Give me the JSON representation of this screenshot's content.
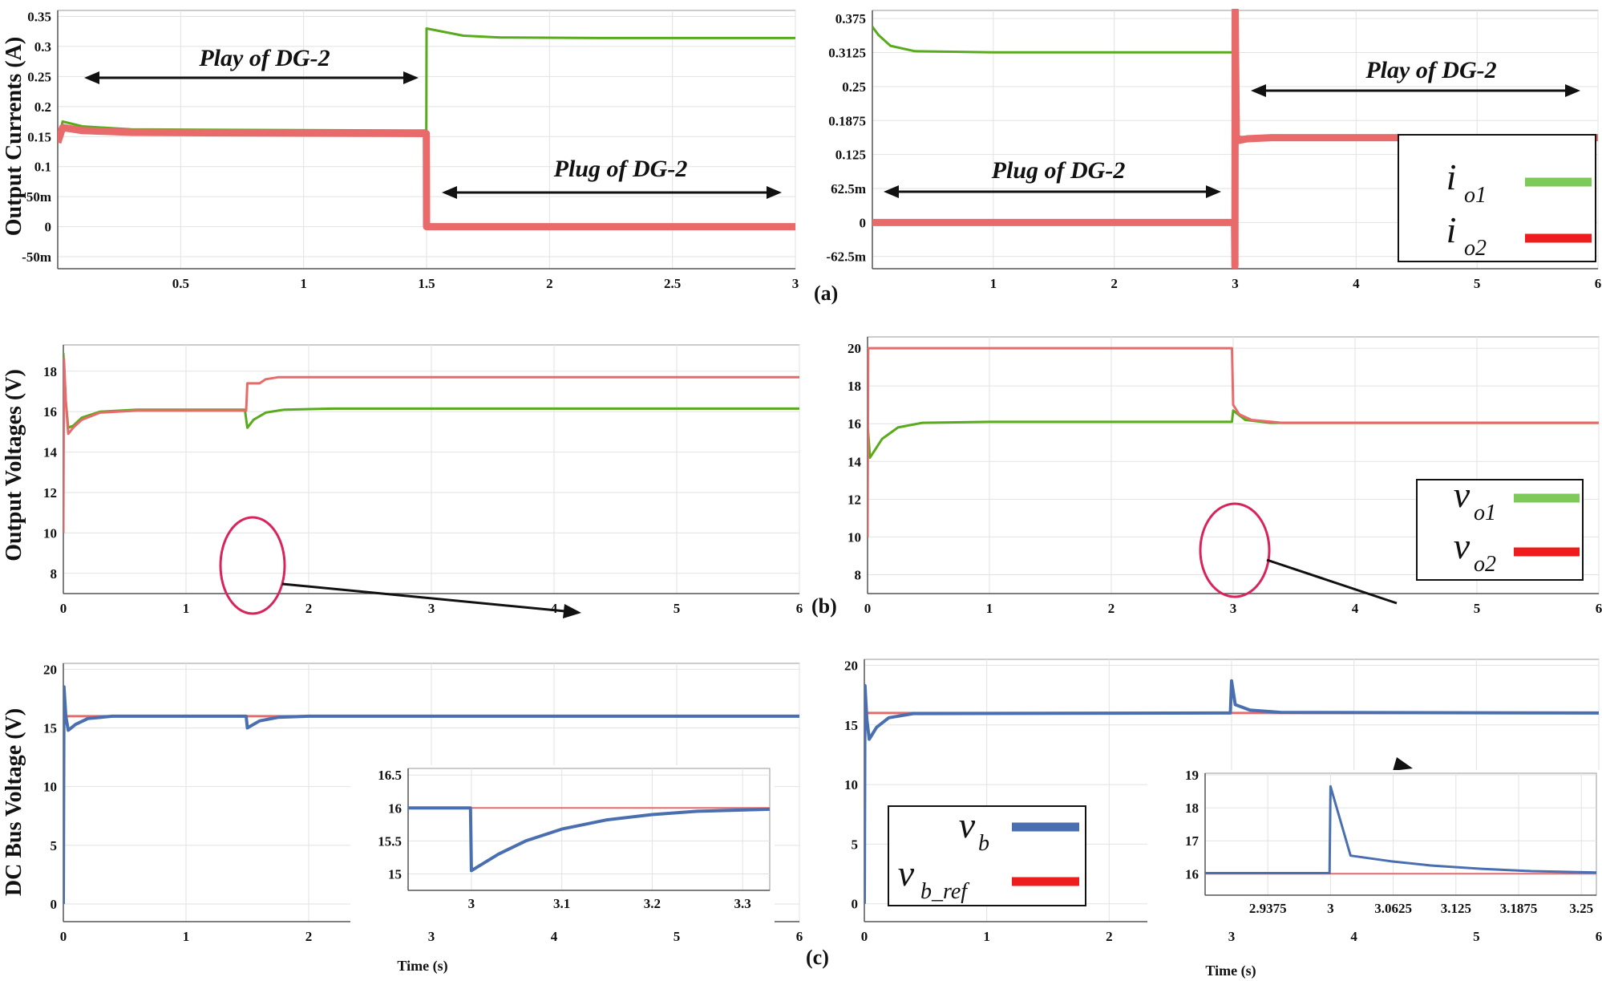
{
  "figure": {
    "ylabels": {
      "a": "Output Currents (A)",
      "b": "Output Voltages (V)",
      "c": "DC Bus Voltage (V)"
    },
    "panel_labels": {
      "a": "(a)",
      "b": "(b)",
      "c": "(c)"
    },
    "xlabel": "Time (s)"
  },
  "colors": {
    "green": "#5aaa1e",
    "red": "#e86a6a",
    "blue": "#4a6fb0",
    "ellipse": "#d8245a",
    "legend_green": "#7dc95a",
    "legend_red": "#ee1c1c"
  },
  "annotations": {
    "a_left_play": "Play of DG-2",
    "a_left_plug": "Plug of DG-2",
    "a_right_plug": "Plug of DG-2",
    "a_right_play": "Play of DG-2"
  },
  "legends": {
    "a": [
      {
        "sym": "i",
        "sub": "o1",
        "color": "green"
      },
      {
        "sym": "i",
        "sub": "o2",
        "color": "red"
      }
    ],
    "b": [
      {
        "sym": "v",
        "sub": "o1",
        "color": "green"
      },
      {
        "sym": "v",
        "sub": "o2",
        "color": "red"
      }
    ],
    "c": [
      {
        "sym": "v",
        "sub": "b",
        "color": "blue"
      },
      {
        "sym": "v",
        "sub": "b_ref",
        "color": "legend_red"
      }
    ]
  },
  "chart_data": [
    {
      "id": "a_left",
      "type": "line",
      "xlim": [
        0,
        3
      ],
      "ylim": [
        -0.07,
        0.36
      ],
      "xticks": [
        0.5,
        1,
        1.5,
        2,
        2.5,
        3
      ],
      "xtick_labels": [
        "0.5",
        "1",
        "1.5",
        "2",
        "2.5",
        "3"
      ],
      "yticks": [
        -0.05,
        0,
        0.05,
        0.1,
        0.15,
        0.2,
        0.25,
        0.3,
        0.35
      ],
      "ytick_labels": [
        "-50m",
        "0",
        "50m",
        "0.1",
        "0.15",
        "0.2",
        "0.25",
        "0.3",
        "0.35"
      ],
      "series": [
        {
          "name": "io1",
          "color": "green",
          "width": 3,
          "points": [
            [
              0,
              0.14
            ],
            [
              0.02,
              0.175
            ],
            [
              0.1,
              0.167
            ],
            [
              0.3,
              0.162
            ],
            [
              0.8,
              0.161
            ],
            [
              1.499,
              0.16
            ],
            [
              1.5,
              0.33
            ],
            [
              1.55,
              0.326
            ],
            [
              1.65,
              0.318
            ],
            [
              1.8,
              0.315
            ],
            [
              2.2,
              0.314
            ],
            [
              3,
              0.314
            ]
          ]
        },
        {
          "name": "io2",
          "color": "red",
          "width": 9,
          "points": [
            [
              0,
              0.14
            ],
            [
              0.02,
              0.165
            ],
            [
              0.1,
              0.16
            ],
            [
              0.3,
              0.157
            ],
            [
              0.8,
              0.156
            ],
            [
              1.499,
              0.155
            ],
            [
              1.5,
              0
            ],
            [
              3,
              0
            ]
          ]
        }
      ]
    },
    {
      "id": "a_right",
      "type": "line",
      "xlim": [
        0,
        6
      ],
      "ylim": [
        -0.085,
        0.39
      ],
      "xticks": [
        1,
        2,
        3,
        4,
        5,
        6
      ],
      "xtick_labels": [
        "1",
        "2",
        "3",
        "4",
        "5",
        "6"
      ],
      "yticks": [
        -0.0625,
        0,
        0.0625,
        0.125,
        0.1875,
        0.25,
        0.3125,
        0.375
      ],
      "ytick_labels": [
        "-62.5m",
        "0",
        "62.5m",
        "0.125",
        "0.1875",
        "0.25",
        "0.3125",
        "0.375"
      ],
      "series": [
        {
          "name": "io1",
          "color": "green",
          "width": 3,
          "points": [
            [
              0,
              0.36
            ],
            [
              0.05,
              0.345
            ],
            [
              0.15,
              0.325
            ],
            [
              0.35,
              0.315
            ],
            [
              1,
              0.313
            ],
            [
              2.99,
              0.313
            ],
            [
              3,
              0.16
            ],
            [
              3.05,
              0.157
            ],
            [
              3.2,
              0.159
            ],
            [
              6,
              0.16
            ]
          ]
        },
        {
          "name": "io2",
          "color": "red",
          "width": 9,
          "points": [
            [
              0,
              0
            ],
            [
              2.995,
              0
            ],
            [
              2.998,
              -0.08
            ],
            [
              3.0,
              0.39
            ],
            [
              3.01,
              0.15
            ],
            [
              3.1,
              0.154
            ],
            [
              3.3,
              0.156
            ],
            [
              6,
              0.156
            ]
          ]
        }
      ]
    },
    {
      "id": "b_left",
      "type": "line",
      "xlim": [
        0,
        6
      ],
      "ylim": [
        7,
        19.3
      ],
      "xticks": [
        0,
        1,
        2,
        3,
        4,
        5,
        6
      ],
      "xtick_labels": [
        "0",
        "1",
        "2",
        "3",
        "4",
        "5",
        "6"
      ],
      "yticks": [
        8,
        10,
        12,
        14,
        16,
        18
      ],
      "ytick_labels": [
        "8",
        "10",
        "12",
        "14",
        "16",
        "18"
      ],
      "series": [
        {
          "name": "vo1",
          "color": "green",
          "width": 3,
          "points": [
            [
              0,
              18.9
            ],
            [
              0.02,
              16.5
            ],
            [
              0.04,
              15.2
            ],
            [
              0.08,
              15.3
            ],
            [
              0.15,
              15.7
            ],
            [
              0.3,
              16.0
            ],
            [
              0.6,
              16.1
            ],
            [
              1.48,
              16.1
            ],
            [
              1.5,
              15.2
            ],
            [
              1.55,
              15.6
            ],
            [
              1.65,
              15.95
            ],
            [
              1.8,
              16.1
            ],
            [
              2.2,
              16.15
            ],
            [
              6,
              16.15
            ]
          ]
        },
        {
          "name": "vo2",
          "color": "red",
          "width": 3,
          "points": [
            [
              0,
              10
            ],
            [
              0.005,
              18.6
            ],
            [
              0.02,
              16.5
            ],
            [
              0.04,
              14.9
            ],
            [
              0.08,
              15.2
            ],
            [
              0.15,
              15.6
            ],
            [
              0.3,
              15.95
            ],
            [
              0.6,
              16.05
            ],
            [
              1.49,
              16.05
            ],
            [
              1.5,
              17.4
            ],
            [
              1.6,
              17.4
            ],
            [
              1.65,
              17.6
            ],
            [
              1.75,
              17.7
            ],
            [
              2.2,
              17.7
            ],
            [
              6,
              17.7
            ]
          ]
        }
      ]
    },
    {
      "id": "b_right",
      "type": "line",
      "xlim": [
        0,
        6
      ],
      "ylim": [
        7,
        20.6
      ],
      "xticks": [
        0,
        1,
        2,
        3,
        4,
        5,
        6
      ],
      "xtick_labels": [
        "0",
        "1",
        "2",
        "3",
        "4",
        "5",
        "6"
      ],
      "yticks": [
        8,
        10,
        12,
        14,
        16,
        18,
        20
      ],
      "ytick_labels": [
        "8",
        "10",
        "12",
        "14",
        "16",
        "18",
        "20"
      ],
      "series": [
        {
          "name": "vo1",
          "color": "green",
          "width": 3,
          "points": [
            [
              0,
              16
            ],
            [
              0.02,
              14.2
            ],
            [
              0.06,
              14.6
            ],
            [
              0.12,
              15.2
            ],
            [
              0.25,
              15.8
            ],
            [
              0.45,
              16.05
            ],
            [
              1,
              16.1
            ],
            [
              2.99,
              16.1
            ],
            [
              3,
              16.7
            ],
            [
              3.1,
              16.2
            ],
            [
              3.3,
              16.05
            ],
            [
              6,
              16.05
            ]
          ]
        },
        {
          "name": "vo2",
          "color": "red",
          "width": 3,
          "points": [
            [
              0,
              10
            ],
            [
              0.005,
              20
            ],
            [
              2.99,
              20
            ],
            [
              3.0,
              17.0
            ],
            [
              3.05,
              16.5
            ],
            [
              3.15,
              16.2
            ],
            [
              3.4,
              16.05
            ],
            [
              6,
              16.05
            ]
          ]
        }
      ]
    },
    {
      "id": "c_left",
      "type": "line",
      "xlim": [
        0,
        6
      ],
      "ylim": [
        -1.5,
        20.5
      ],
      "xticks": [
        0,
        1,
        2,
        3,
        4,
        5,
        6
      ],
      "xtick_labels": [
        "0",
        "1",
        "2",
        "3",
        "4",
        "5",
        "6"
      ],
      "yticks": [
        0,
        5,
        10,
        15,
        20
      ],
      "ytick_labels": [
        "0",
        "5",
        "10",
        "15",
        "20"
      ],
      "series": [
        {
          "name": "vb_ref",
          "color": "red",
          "width": 3,
          "points": [
            [
              0,
              16
            ],
            [
              6,
              16
            ]
          ]
        },
        {
          "name": "vb",
          "color": "blue",
          "width": 4,
          "points": [
            [
              0,
              0
            ],
            [
              0.005,
              18.5
            ],
            [
              0.02,
              16
            ],
            [
              0.04,
              14.8
            ],
            [
              0.1,
              15.3
            ],
            [
              0.2,
              15.8
            ],
            [
              0.4,
              16.0
            ],
            [
              1.49,
              16.0
            ],
            [
              1.5,
              15.0
            ],
            [
              1.6,
              15.6
            ],
            [
              1.75,
              15.9
            ],
            [
              2,
              16.0
            ],
            [
              6,
              16.0
            ]
          ]
        }
      ]
    },
    {
      "id": "c_left_inset",
      "type": "line",
      "xlim": [
        2.93,
        3.33
      ],
      "ylim": [
        14.75,
        16.6
      ],
      "xticks": [
        3,
        3.1,
        3.2,
        3.3
      ],
      "xtick_labels": [
        "3",
        "3.1",
        "3.2",
        "3.3"
      ],
      "yticks": [
        15,
        15.5,
        16,
        16.5
      ],
      "ytick_labels": [
        "15",
        "15.5",
        "16",
        "16.5"
      ],
      "series": [
        {
          "name": "vb_ref",
          "color": "red",
          "width": 2,
          "points": [
            [
              2.93,
              16
            ],
            [
              3.33,
              16
            ]
          ]
        },
        {
          "name": "vb",
          "color": "blue",
          "width": 4,
          "points": [
            [
              2.93,
              16
            ],
            [
              2.999,
              16
            ],
            [
              3.0,
              15.05
            ],
            [
              3.03,
              15.3
            ],
            [
              3.06,
              15.5
            ],
            [
              3.1,
              15.68
            ],
            [
              3.15,
              15.82
            ],
            [
              3.2,
              15.9
            ],
            [
              3.25,
              15.95
            ],
            [
              3.33,
              15.98
            ]
          ]
        }
      ]
    },
    {
      "id": "c_right",
      "type": "line",
      "xlim": [
        0,
        6
      ],
      "ylim": [
        -1.5,
        20.5
      ],
      "xticks": [
        0,
        1,
        2,
        3,
        4,
        5,
        6
      ],
      "xtick_labels": [
        "0",
        "1",
        "2",
        "3",
        "4",
        "5",
        "6"
      ],
      "yticks": [
        0,
        5,
        10,
        15,
        20
      ],
      "ytick_labels": [
        "0",
        "5",
        "10",
        "15",
        "20"
      ],
      "series": [
        {
          "name": "vb_ref",
          "color": "red",
          "width": 3,
          "points": [
            [
              0,
              16
            ],
            [
              6,
              16
            ]
          ]
        },
        {
          "name": "vb",
          "color": "blue",
          "width": 4,
          "points": [
            [
              0,
              0
            ],
            [
              0.005,
              18.3
            ],
            [
              0.02,
              15.5
            ],
            [
              0.04,
              13.8
            ],
            [
              0.1,
              14.8
            ],
            [
              0.2,
              15.6
            ],
            [
              0.4,
              15.95
            ],
            [
              2.99,
              16.0
            ],
            [
              3.0,
              18.7
            ],
            [
              3.03,
              16.7
            ],
            [
              3.15,
              16.25
            ],
            [
              3.4,
              16.05
            ],
            [
              6,
              16.0
            ]
          ]
        }
      ]
    },
    {
      "id": "c_right_inset",
      "type": "line",
      "xlim": [
        2.875,
        3.265
      ],
      "ylim": [
        15.35,
        19.05
      ],
      "xticks": [
        2.9375,
        3,
        3.0625,
        3.125,
        3.1875,
        3.25
      ],
      "xtick_labels": [
        "2.9375",
        "3",
        "3.0625",
        "3.125",
        "3.1875",
        "3.25"
      ],
      "yticks": [
        16,
        17,
        18,
        19
      ],
      "ytick_labels": [
        "16",
        "17",
        "18",
        "19"
      ],
      "series": [
        {
          "name": "vb_ref",
          "color": "red",
          "width": 2,
          "points": [
            [
              2.875,
              16
            ],
            [
              3.265,
              16
            ]
          ]
        },
        {
          "name": "vb",
          "color": "blue",
          "width": 3,
          "points": [
            [
              2.875,
              16.02
            ],
            [
              2.999,
              16.02
            ],
            [
              3.0,
              18.65
            ],
            [
              3.02,
              16.55
            ],
            [
              3.06,
              16.38
            ],
            [
              3.1,
              16.25
            ],
            [
              3.15,
              16.15
            ],
            [
              3.2,
              16.08
            ],
            [
              3.265,
              16.04
            ]
          ]
        }
      ]
    }
  ]
}
